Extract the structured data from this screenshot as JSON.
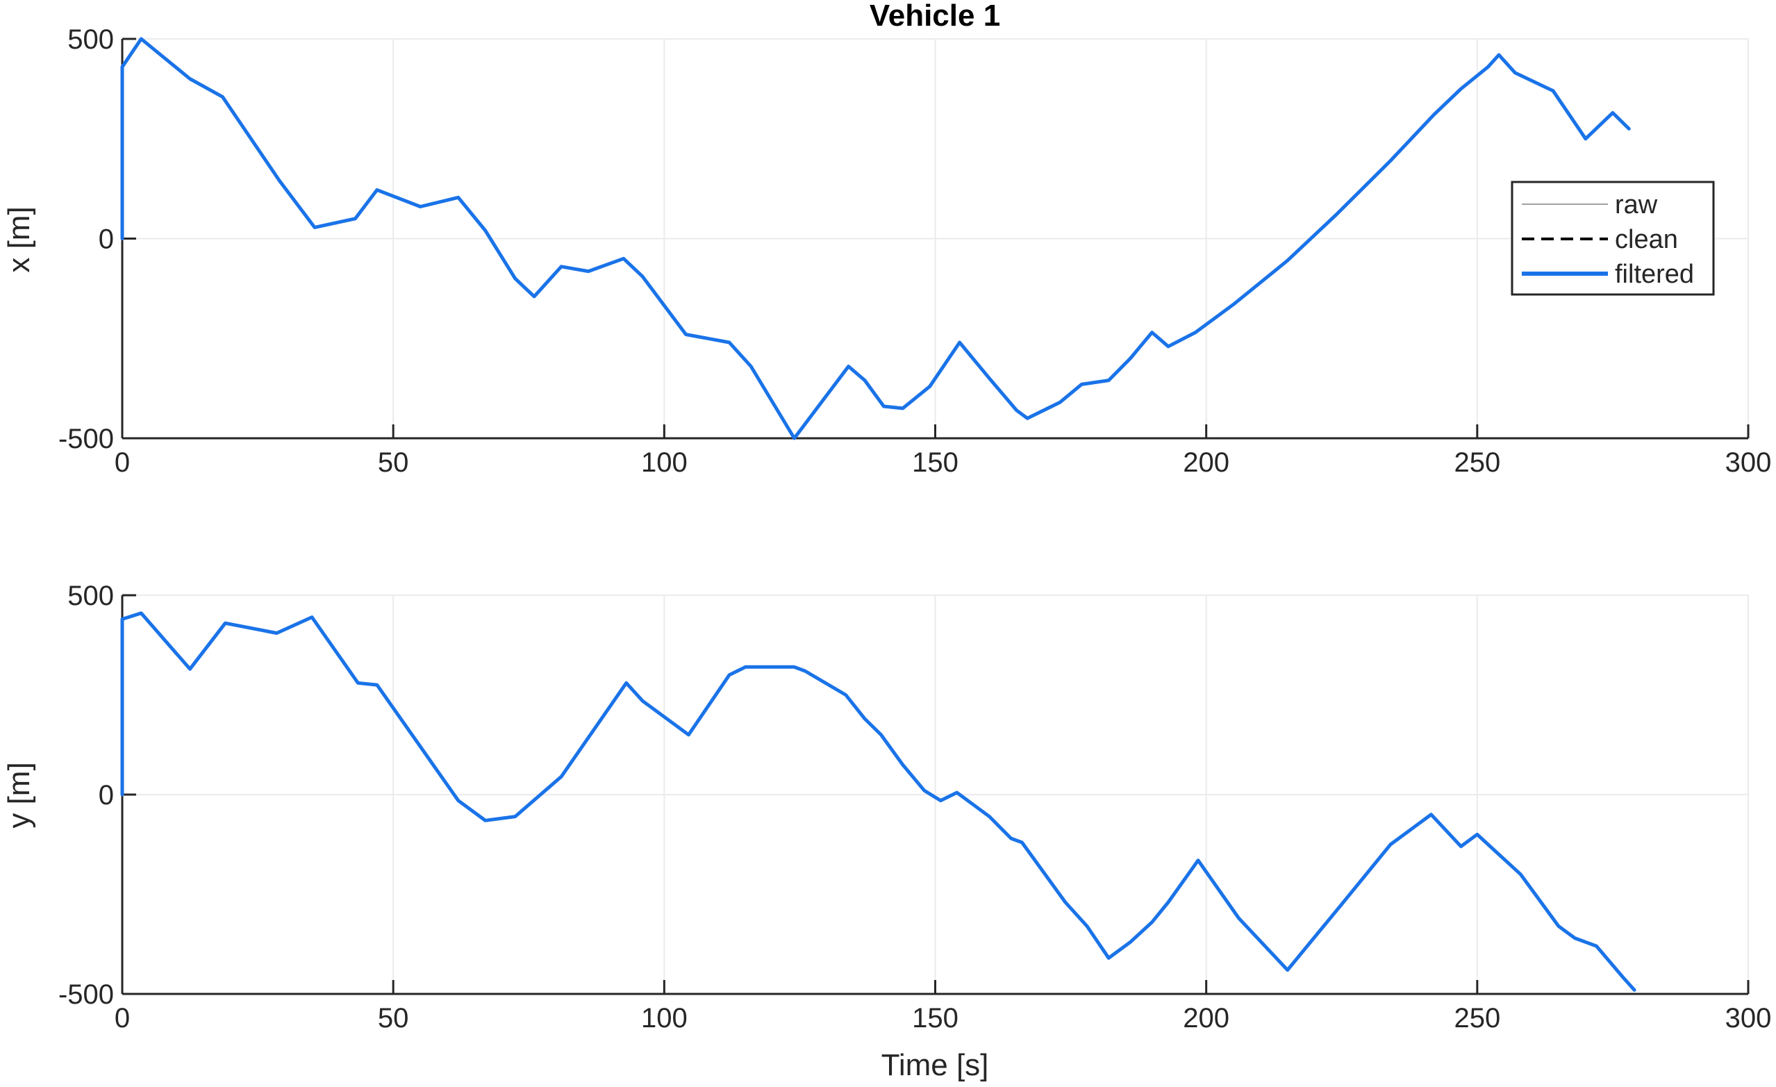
{
  "chart_data": [
    {
      "type": "line",
      "title": "Vehicle 1",
      "xlabel": "",
      "ylabel": "x [m]",
      "xlim": [
        0,
        300
      ],
      "ylim": [
        -500,
        500
      ],
      "xticks": [
        0,
        50,
        100,
        150,
        200,
        250,
        300
      ],
      "yticks": [
        -500,
        0,
        500
      ],
      "ytick_labels": [
        "-500",
        "0",
        "500"
      ],
      "grid": true,
      "legend": {
        "placement": "right",
        "entries": [
          {
            "label": "raw",
            "color": "#a0a0a0",
            "style": "thin-solid"
          },
          {
            "label": "clean",
            "color": "#000000",
            "style": "dashed"
          },
          {
            "label": "filtered",
            "color": "#1a73e8",
            "style": "thick-solid"
          }
        ]
      },
      "series": [
        {
          "name": "filtered",
          "color": "#1a73e8",
          "x": [
            0,
            0,
            3.5,
            12.5,
            18.5,
            29,
            35.5,
            43,
            47,
            55,
            62,
            67,
            72.5,
            76,
            81,
            86,
            92.5,
            96,
            104,
            112,
            116,
            124,
            134,
            137,
            140.5,
            144,
            149,
            154.5,
            160,
            165,
            167,
            173,
            177,
            182,
            186,
            190,
            193,
            198,
            205,
            215,
            224,
            234,
            242,
            247,
            252,
            254,
            257,
            264,
            266,
            270,
            275,
            278
          ],
          "y": [
            0,
            430,
            500,
            400,
            355,
            145,
            28,
            50,
            122,
            80,
            103,
            20,
            -100,
            -145,
            -70,
            -82,
            -50,
            -95,
            -240,
            -260,
            -320,
            -500,
            -320,
            -355,
            -420,
            -425,
            -370,
            -260,
            -350,
            -430,
            -450,
            -410,
            -365,
            -355,
            -300,
            -235,
            -270,
            -235,
            -165,
            -55,
            60,
            195,
            310,
            375,
            430,
            460,
            415,
            370,
            330,
            250,
            315,
            275
          ]
        }
      ]
    },
    {
      "type": "line",
      "title": "",
      "xlabel": "Time [s]",
      "ylabel": "y [m]",
      "xlim": [
        0,
        300
      ],
      "ylim": [
        -500,
        500
      ],
      "xticks": [
        0,
        50,
        100,
        150,
        200,
        250,
        300
      ],
      "yticks": [
        -500,
        0,
        500
      ],
      "ytick_labels": [
        "-500",
        "0",
        "500"
      ],
      "grid": true,
      "series": [
        {
          "name": "filtered",
          "color": "#1a73e8",
          "x": [
            0,
            0,
            3.5,
            12.5,
            19,
            28.5,
            35,
            43.5,
            47,
            62,
            67,
            72.5,
            81,
            93,
            96,
            104.5,
            112,
            115,
            124,
            126,
            133.5,
            137,
            140,
            144,
            148,
            151,
            154,
            160,
            164,
            166,
            174,
            178,
            182,
            186,
            190,
            193,
            198.5,
            206,
            215,
            225,
            234,
            241.5,
            247,
            250,
            254,
            258,
            265,
            268,
            272,
            277,
            279
          ],
          "y": [
            0,
            440,
            455,
            315,
            430,
            405,
            445,
            280,
            275,
            -15,
            -65,
            -55,
            45,
            280,
            235,
            150,
            300,
            320,
            320,
            310,
            250,
            190,
            150,
            75,
            10,
            -15,
            5,
            -55,
            -110,
            -120,
            -270,
            -330,
            -410,
            -370,
            -320,
            -270,
            -165,
            -310,
            -440,
            -275,
            -125,
            -50,
            -130,
            -100,
            -150,
            -200,
            -330,
            -360,
            -380,
            -460,
            -490
          ]
        }
      ]
    }
  ]
}
